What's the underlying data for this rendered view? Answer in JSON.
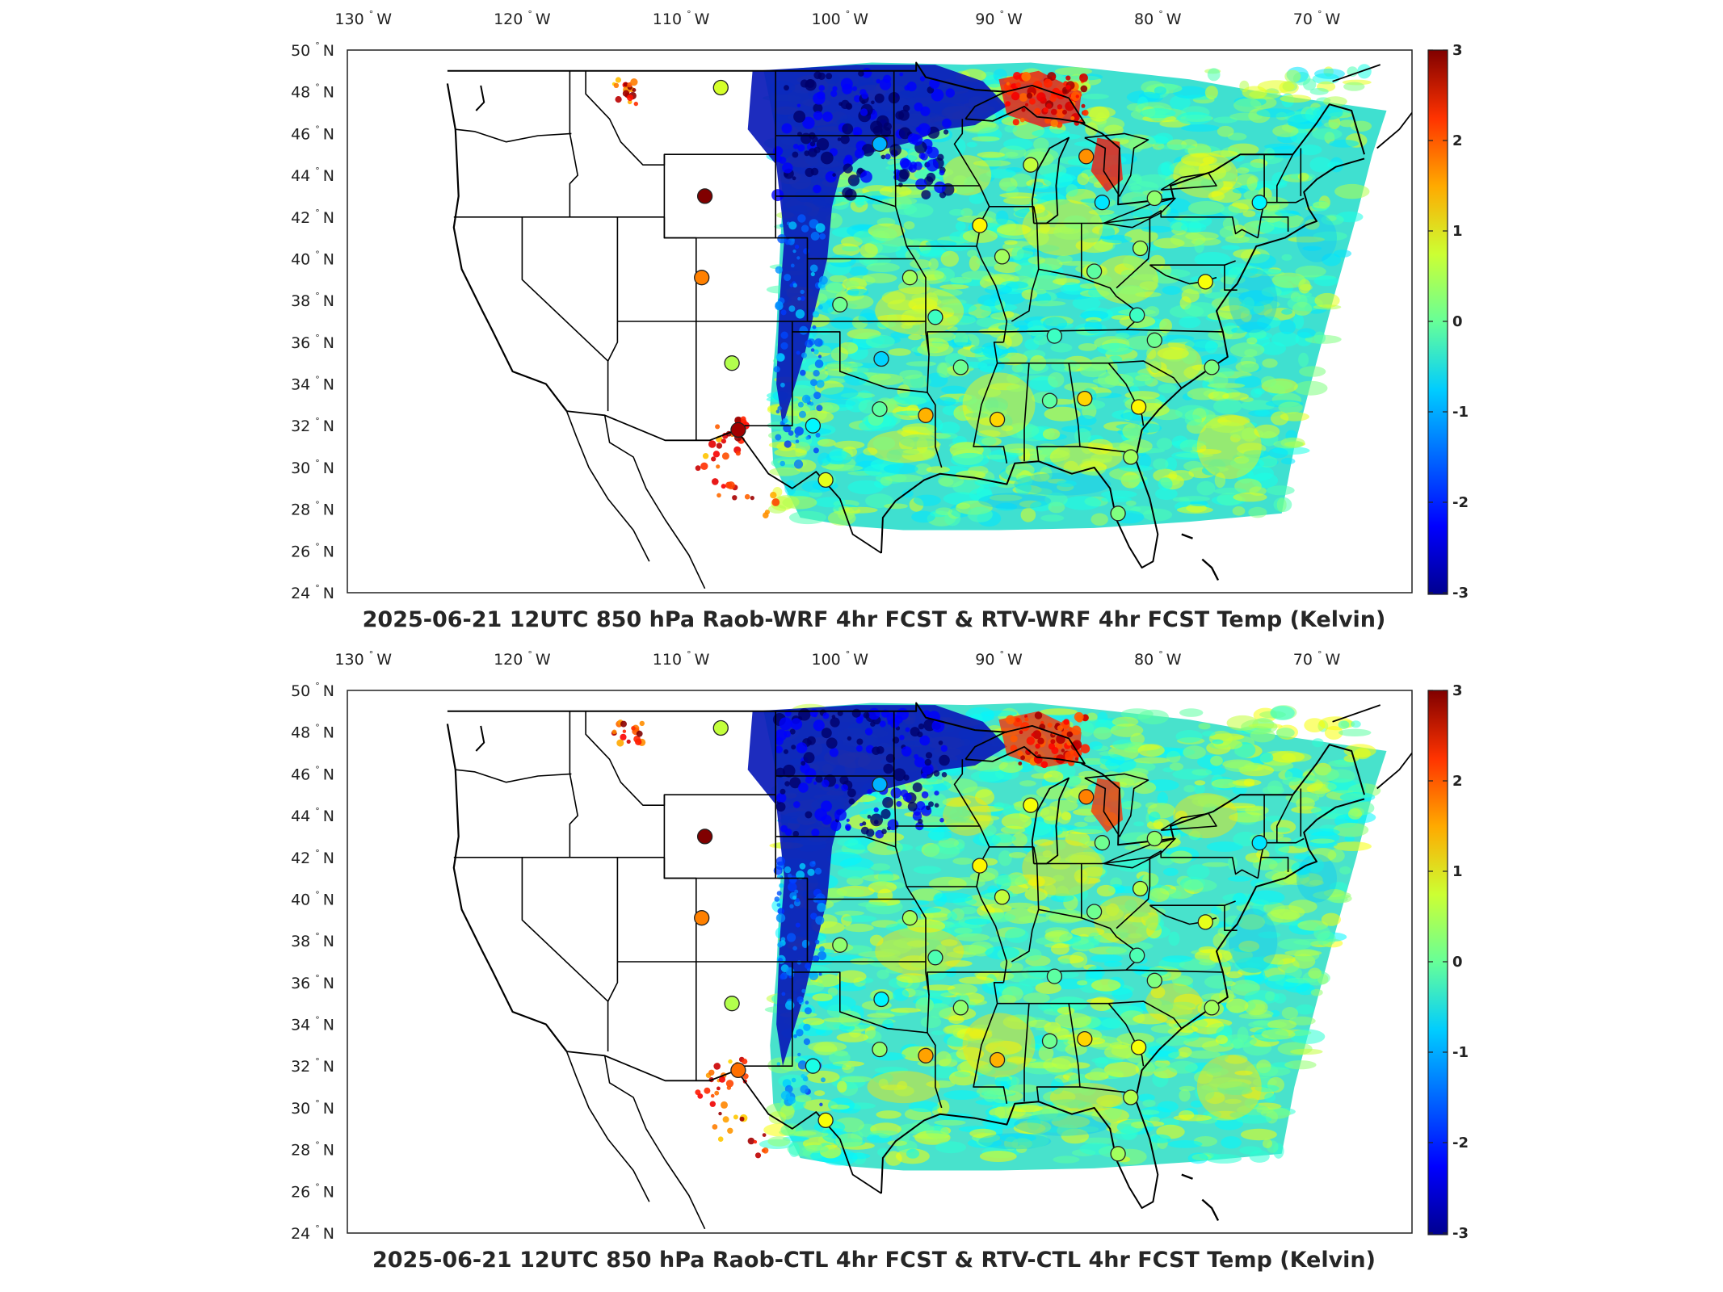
{
  "panels": [
    {
      "title": "2025-06-21 12UTC 850 hPa Raob-WRF 4hr FCST & RTV-WRF 4hr FCST Temp (Kelvin)",
      "variant": "wrf"
    },
    {
      "title": "2025-06-21 12UTC 850 hPa Raob-CTL 4hr FCST & RTV-CTL 4hr FCST Temp (Kelvin)",
      "variant": "ctl"
    }
  ],
  "lon_ticks": [
    "130",
    "120",
    "110",
    "100",
    "90",
    "80",
    "70"
  ],
  "lon_suffix": "W",
  "lat_ticks": [
    "50",
    "48",
    "46",
    "44",
    "42",
    "40",
    "38",
    "36",
    "34",
    "32",
    "30",
    "28",
    "26",
    "24"
  ],
  "lat_suffix": "N",
  "degree_symbol": "°",
  "colorbar": {
    "ticks": [
      "3",
      "2",
      "1",
      "0",
      "-1",
      "-2",
      "-3"
    ],
    "range": [
      -3,
      3
    ],
    "colormap": "jet",
    "colors": [
      "#00008f",
      "#0000ff",
      "#0080ff",
      "#00ffff",
      "#80ff80",
      "#ffff00",
      "#ff8000",
      "#ff0000",
      "#800000"
    ]
  },
  "map_extent": {
    "lon": [
      -131,
      -64
    ],
    "lat": [
      24,
      50
    ]
  },
  "stations": [
    {
      "lon": -107.5,
      "lat": 48.2,
      "wrf": 0.5,
      "ctl": 0.4
    },
    {
      "lon": -97.5,
      "lat": 45.5,
      "wrf": -1.2,
      "ctl": -1.2
    },
    {
      "lon": -108.5,
      "lat": 43.0,
      "wrf": 3.0,
      "ctl": 3.0
    },
    {
      "lon": -108.7,
      "lat": 39.1,
      "wrf": 1.5,
      "ctl": 1.5
    },
    {
      "lon": -106.8,
      "lat": 35.0,
      "wrf": 0.3,
      "ctl": 0.3
    },
    {
      "lon": -106.4,
      "lat": 31.8,
      "wrf": 2.8,
      "ctl": 1.6
    },
    {
      "lon": -101.7,
      "lat": 32.0,
      "wrf": -0.8,
      "ctl": -0.6
    },
    {
      "lon": -100.9,
      "lat": 29.4,
      "wrf": 0.6,
      "ctl": 0.7
    },
    {
      "lon": -97.5,
      "lat": 32.8,
      "wrf": -0.2,
      "ctl": 0.1
    },
    {
      "lon": -94.6,
      "lat": 32.5,
      "wrf": 1.2,
      "ctl": 1.3
    },
    {
      "lon": -97.4,
      "lat": 35.2,
      "wrf": -1.0,
      "ctl": -0.8
    },
    {
      "lon": -100.0,
      "lat": 37.8,
      "wrf": -0.1,
      "ctl": 0.1
    },
    {
      "lon": -95.6,
      "lat": 39.1,
      "wrf": 0.2,
      "ctl": 0.2
    },
    {
      "lon": -94.0,
      "lat": 37.2,
      "wrf": -0.4,
      "ctl": -0.3
    },
    {
      "lon": -92.4,
      "lat": 34.8,
      "wrf": -0.1,
      "ctl": 0.1
    },
    {
      "lon": -90.1,
      "lat": 32.3,
      "wrf": 1.0,
      "ctl": 1.2
    },
    {
      "lon": -86.8,
      "lat": 33.2,
      "wrf": -0.2,
      "ctl": -0.1
    },
    {
      "lon": -84.6,
      "lat": 33.3,
      "wrf": 1.0,
      "ctl": 1.0
    },
    {
      "lon": -81.2,
      "lat": 32.9,
      "wrf": 0.8,
      "ctl": 0.7
    },
    {
      "lon": -86.5,
      "lat": 36.3,
      "wrf": -0.4,
      "ctl": -0.2
    },
    {
      "lon": -89.8,
      "lat": 40.1,
      "wrf": 0.2,
      "ctl": 0.4
    },
    {
      "lon": -91.2,
      "lat": 41.6,
      "wrf": 0.8,
      "ctl": 0.8
    },
    {
      "lon": -88.0,
      "lat": 44.5,
      "wrf": 0.4,
      "ctl": 0.7
    },
    {
      "lon": -84.5,
      "lat": 44.9,
      "wrf": 1.4,
      "ctl": 1.5
    },
    {
      "lon": -83.5,
      "lat": 42.7,
      "wrf": -0.9,
      "ctl": -0.1
    },
    {
      "lon": -84.0,
      "lat": 39.4,
      "wrf": -0.2,
      "ctl": -0.1
    },
    {
      "lon": -81.1,
      "lat": 40.5,
      "wrf": 0.2,
      "ctl": 0.3
    },
    {
      "lon": -80.2,
      "lat": 42.9,
      "wrf": 0.1,
      "ctl": 0.1
    },
    {
      "lon": -81.3,
      "lat": 37.3,
      "wrf": -0.4,
      "ctl": -0.3
    },
    {
      "lon": -80.2,
      "lat": 36.1,
      "wrf": -0.1,
      "ctl": 0.0
    },
    {
      "lon": -77.0,
      "lat": 38.9,
      "wrf": 0.7,
      "ctl": 0.6
    },
    {
      "lon": -76.6,
      "lat": 34.8,
      "wrf": 0.0,
      "ctl": 0.2
    },
    {
      "lon": -73.6,
      "lat": 42.7,
      "wrf": -0.8,
      "ctl": -0.9
    },
    {
      "lon": -81.7,
      "lat": 30.5,
      "wrf": 0.2,
      "ctl": 0.3
    },
    {
      "lon": -82.5,
      "lat": 27.8,
      "wrf": 0.0,
      "ctl": 0.2
    }
  ]
}
